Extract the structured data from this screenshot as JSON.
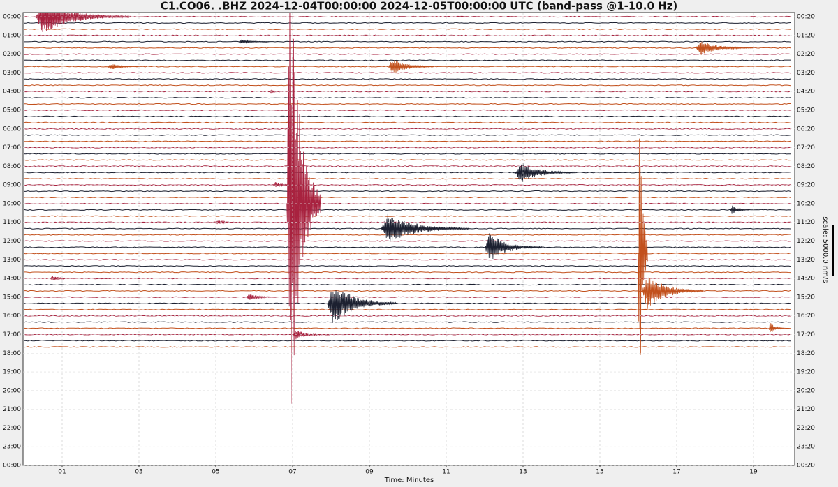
{
  "chart_data": {
    "type": "dayplot",
    "title": "C1.CO06.  .BHZ 2024-12-04T00:00:00 2024-12-05T00:00:00 UTC (band-pass @1-10.0 Hz)",
    "xlabel": "Time: Minutes",
    "scale_label": "scale: 5000.0 nm/s",
    "xlim": [
      0,
      20
    ],
    "xticks": [
      {
        "value": 1,
        "label": "01"
      },
      {
        "value": 3,
        "label": "03"
      },
      {
        "value": 5,
        "label": "05"
      },
      {
        "value": 7,
        "label": "07"
      },
      {
        "value": 9,
        "label": "09"
      },
      {
        "value": 11,
        "label": "11"
      },
      {
        "value": 13,
        "label": "13"
      },
      {
        "value": 15,
        "label": "15"
      },
      {
        "value": 17,
        "label": "17"
      },
      {
        "value": 19,
        "label": "19"
      }
    ],
    "left_labels": [
      "00:00",
      "01:00",
      "02:00",
      "03:00",
      "04:00",
      "05:00",
      "06:00",
      "07:00",
      "08:00",
      "09:00",
      "10:00",
      "11:00",
      "12:00",
      "13:00",
      "14:00",
      "15:00",
      "16:00",
      "17:00",
      "18:00",
      "19:00",
      "20:00",
      "21:00",
      "22:00",
      "23:00",
      "00:00"
    ],
    "right_labels": [
      "00:20",
      "01:20",
      "02:20",
      "03:20",
      "04:20",
      "05:20",
      "06:20",
      "07:20",
      "08:20",
      "09:20",
      "10:20",
      "11:20",
      "12:20",
      "13:20",
      "14:20",
      "15:20",
      "16:20",
      "17:20",
      "18:20",
      "19:20",
      "20:20",
      "21:20",
      "22:20",
      "23:20",
      "00:20"
    ],
    "trace_count": 54,
    "colors": [
      "#a8223f",
      "#1c2030",
      "#c2501c"
    ],
    "events": [
      {
        "row": 0,
        "start": 0.3,
        "len": 2.5,
        "amp": 2.8
      },
      {
        "row": 4,
        "start": 5.6,
        "len": 0.8,
        "amp": 0.4
      },
      {
        "row": 5,
        "start": 17.5,
        "len": 1.5,
        "amp": 1.2
      },
      {
        "row": 8,
        "start": 2.2,
        "len": 0.8,
        "amp": 0.6
      },
      {
        "row": 8,
        "start": 9.5,
        "len": 1.2,
        "amp": 1.4
      },
      {
        "row": 12,
        "start": 6.4,
        "len": 0.3,
        "amp": 0.4
      },
      {
        "row": 25,
        "start": 12.8,
        "len": 1.6,
        "amp": 1.8
      },
      {
        "row": 27,
        "start": 6.5,
        "len": 0.6,
        "amp": 0.5
      },
      {
        "row": 31,
        "start": 18.4,
        "len": 0.5,
        "amp": 0.8
      },
      {
        "row": 33,
        "start": 5.0,
        "len": 0.6,
        "amp": 0.4
      },
      {
        "row": 34,
        "start": 9.3,
        "len": 2.3,
        "amp": 2.5
      },
      {
        "row": 37,
        "start": 12.0,
        "len": 1.5,
        "amp": 2.5
      },
      {
        "row": 42,
        "start": 0.7,
        "len": 0.6,
        "amp": 0.5
      },
      {
        "row": 44,
        "start": 16.1,
        "len": 1.6,
        "amp": 3.0
      },
      {
        "row": 45,
        "start": 5.8,
        "len": 0.8,
        "amp": 0.6
      },
      {
        "row": 46,
        "start": 7.9,
        "len": 1.8,
        "amp": 3.5
      },
      {
        "row": 50,
        "start": 19.4,
        "len": 0.4,
        "amp": 1.0
      },
      {
        "row": 51,
        "start": 7.0,
        "len": 1.0,
        "amp": 0.8
      },
      {
        "row": 30,
        "start": 6.85,
        "len": 0.9,
        "amp": 40
      },
      {
        "row": 38,
        "start": 16.0,
        "len": 0.25,
        "amp": 34
      }
    ]
  }
}
